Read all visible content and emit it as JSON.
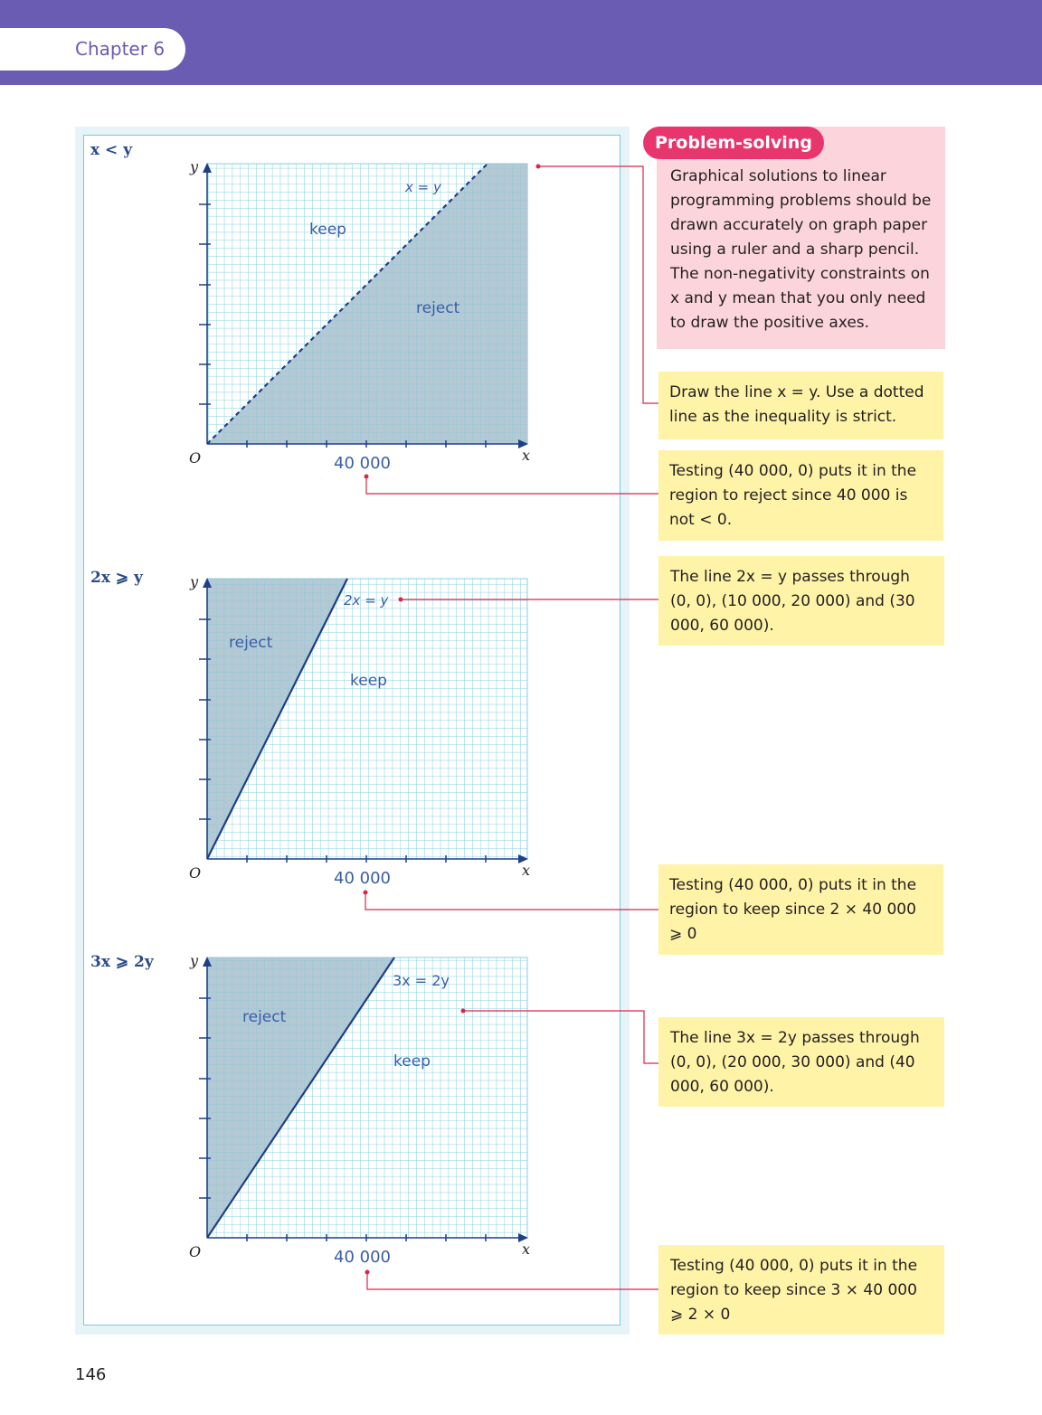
{
  "header": {
    "chapter_label": "Chapter 6"
  },
  "graphs": [
    {
      "inequality": "x < y",
      "line_label": "x = y",
      "regions": {
        "keep": "keep",
        "reject": "reject"
      },
      "x_tick_label": "40 000",
      "origin_label": "O",
      "x_axis_label": "x",
      "y_axis_label": "y",
      "line_style": "dotted",
      "shaded_side": "below line (reject)"
    },
    {
      "inequality": "2x ⩾ y",
      "line_label": "2x = y",
      "regions": {
        "keep": "keep",
        "reject": "reject"
      },
      "x_tick_label": "40 000",
      "origin_label": "O",
      "x_axis_label": "x",
      "y_axis_label": "y",
      "line_style": "solid",
      "shaded_side": "above line (reject)"
    },
    {
      "inequality": "3x ⩾ 2y",
      "line_label": "3x = 2y",
      "regions": {
        "keep": "keep",
        "reject": "reject"
      },
      "x_tick_label": "40 000",
      "origin_label": "O",
      "x_axis_label": "x",
      "y_axis_label": "y",
      "line_style": "solid",
      "shaded_side": "above line (reject)"
    }
  ],
  "problem_solving": {
    "tag": "Problem-solving",
    "text": "Graphical solutions to linear programming problems should be drawn accurately on graph paper using a ruler and a sharp pencil. The non-negativity constraints on x and y mean that you only need to draw the positive axes."
  },
  "notes": [
    "Draw the line x = y. Use a dotted line as the inequality is strict.",
    "Testing (40 000, 0) puts it in the region to reject since 40 000 is not < 0.",
    "The line 2x = y passes through (0, 0), (10 000, 20 000) and (30 000, 60 000).",
    "Testing (40 000, 0) puts it in the region to keep since 2 × 40 000 ⩾ 0",
    "The line 3x = 2y passes through (0, 0), (20 000, 30 000) and (40 000, 60 000).",
    "Testing (40 000, 0) puts it in the region to keep since 3 × 40 000 ⩾ 2 × 0"
  ],
  "colors": {
    "header": "#6a5bb3",
    "shade": "#a7bfcc",
    "grid": "#5fc3da",
    "line": "#1f3f86",
    "leader": "#d9264a",
    "note_bg": "#fff3a8",
    "tip_bg": "#fcd5dc"
  },
  "footer": {
    "page_number": "146"
  }
}
